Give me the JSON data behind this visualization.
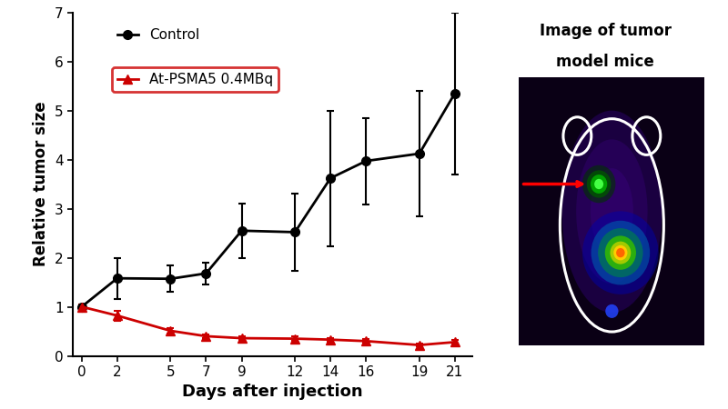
{
  "days": [
    0,
    2,
    5,
    7,
    9,
    12,
    14,
    16,
    19,
    21
  ],
  "control_mean": [
    1.0,
    1.58,
    1.57,
    1.68,
    2.55,
    2.52,
    3.62,
    3.97,
    4.12,
    5.35
  ],
  "control_err": [
    0.05,
    0.42,
    0.27,
    0.22,
    0.55,
    0.78,
    1.38,
    0.88,
    1.27,
    1.65
  ],
  "treatment_mean": [
    1.0,
    0.82,
    0.51,
    0.4,
    0.36,
    0.35,
    0.33,
    0.3,
    0.22,
    0.28
  ],
  "treatment_err": [
    0.05,
    0.1,
    0.05,
    0.04,
    0.04,
    0.04,
    0.04,
    0.04,
    0.03,
    0.04
  ],
  "control_color": "#000000",
  "treatment_color": "#cc0000",
  "control_label": "Control",
  "treatment_label": "At-PSMA5 0.4MBq",
  "xlabel": "Days after injection",
  "ylabel": "Relative tumor size",
  "ylim": [
    0,
    7
  ],
  "yticks": [
    0,
    1,
    2,
    3,
    4,
    5,
    6,
    7
  ],
  "xlim": [
    -0.5,
    22
  ],
  "xticks": [
    0,
    2,
    5,
    7,
    9,
    12,
    14,
    16,
    19,
    21
  ],
  "right_title_line1": "Image of tumor",
  "right_title_line2": "model mice",
  "bg_color": "#ffffff"
}
